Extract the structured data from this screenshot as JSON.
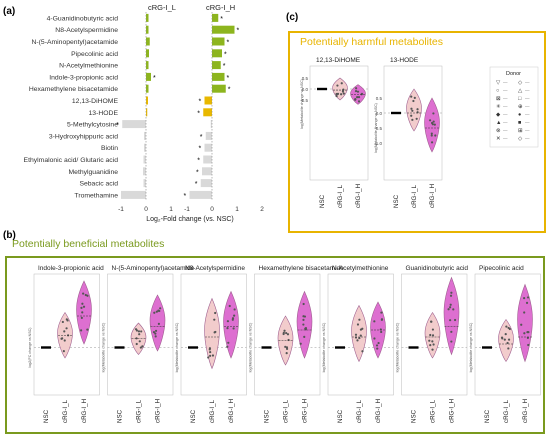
{
  "panels": {
    "a": {
      "label": "(a)"
    },
    "b": {
      "label": "(b)",
      "title": "Potentially beneficial metabolites",
      "frame_color": "#7a9a1e"
    },
    "c": {
      "label": "(c)",
      "title": "Potentially harmful metabolites",
      "frame_color": "#e8b400"
    }
  },
  "chart_data": [
    {
      "panel": "a",
      "type": "bar",
      "xlabel": "Log₂-Fold change (vs. NSC)",
      "column_titles": [
        "cRG-I_L",
        "cRG-I_H"
      ],
      "xticks": [
        -1,
        0,
        1,
        2
      ],
      "xlim": [
        -1.3,
        2.3
      ],
      "categories": [
        "4-Guanidinobutyric acid",
        "N8-Acetylspermidine",
        "N-(5-Aminopentyl)acetamide",
        "Pipecolinic acid",
        "N-Acetylmethionine",
        "Indole-3-propionic acid",
        "Hexamethylene bisacetamide",
        "12,13-DiHOME",
        "13-HODE",
        "5-Methylcytosine",
        "3-Hydroxyhippuric acid",
        "Biotin",
        "Ethylmalonic acid/ Glutaric acid",
        "Methylguanidine",
        "Sebacic acid",
        "Tromethamine"
      ],
      "groups": [
        "beneficial",
        "beneficial",
        "beneficial",
        "beneficial",
        "beneficial",
        "beneficial",
        "beneficial",
        "harmful",
        "harmful",
        "other",
        "other",
        "other",
        "other",
        "other",
        "other",
        "other"
      ],
      "colors": {
        "beneficial": "#8db51e",
        "harmful": "#e8b800",
        "other": "#d9d9d9"
      },
      "series": [
        {
          "name": "cRG-I_L",
          "values": [
            0.1,
            0.1,
            0.15,
            0.12,
            0.1,
            0.2,
            0.1,
            0.08,
            0.05,
            -0.95,
            -0.08,
            -0.08,
            -0.1,
            -0.12,
            -0.1,
            -1.0
          ],
          "significant": [
            false,
            false,
            false,
            false,
            false,
            true,
            false,
            false,
            false,
            true,
            false,
            false,
            false,
            false,
            false,
            false
          ]
        },
        {
          "name": "cRG-I_H",
          "values": [
            0.25,
            0.9,
            0.5,
            0.4,
            0.35,
            0.5,
            0.55,
            -0.3,
            -0.35,
            -0.05,
            -0.25,
            -0.3,
            -0.35,
            -0.4,
            -0.45,
            -0.9
          ],
          "significant": [
            true,
            true,
            true,
            true,
            true,
            true,
            true,
            true,
            true,
            false,
            true,
            true,
            true,
            true,
            true,
            true
          ]
        }
      ],
      "marker": "*"
    },
    {
      "panel": "b",
      "type": "violin",
      "groups": [
        "NSC",
        "cRG-I_L",
        "cRG-I_H"
      ],
      "ylabel": "log(Metabolite change vs NSC)",
      "first_ylabel": "log2(FC change vs NSC)",
      "colors": {
        "NSC": "#000000",
        "cRG-I_L": "#f2cccc",
        "cRG-I_H": "#dd6fd0"
      },
      "plots": [
        {
          "title": "Indole-3-propionic acid",
          "medians": [
            0,
            0.35,
            0.9
          ],
          "ranges": [
            [
              -0.02,
              0.02
            ],
            [
              -0.3,
              1.0
            ],
            [
              0.1,
              1.9
            ]
          ]
        },
        {
          "title": "N-(5-Aminopentyl)acetamide",
          "medians": [
            0,
            0.25,
            0.6
          ],
          "ranges": [
            [
              -0.02,
              0.02
            ],
            [
              -0.2,
              0.7
            ],
            [
              -0.1,
              1.5
            ]
          ]
        },
        {
          "title": "N8-Acetylspermidine",
          "medians": [
            0,
            0.3,
            0.6
          ],
          "ranges": [
            [
              -0.02,
              0.02
            ],
            [
              -0.6,
              1.4
            ],
            [
              -0.3,
              1.6
            ]
          ]
        },
        {
          "title": "Hexamethylene bisacetamide",
          "medians": [
            0,
            0.2,
            0.5
          ],
          "ranges": [
            [
              -0.02,
              0.02
            ],
            [
              -0.5,
              0.9
            ],
            [
              -0.3,
              1.6
            ]
          ]
        },
        {
          "title": "N-Acetylmethionine",
          "medians": [
            0,
            0.3,
            0.5
          ],
          "ranges": [
            [
              -0.02,
              0.02
            ],
            [
              -0.4,
              1.2
            ],
            [
              -0.3,
              1.3
            ]
          ]
        },
        {
          "title": "Guanidinobutyric acid",
          "medians": [
            0,
            0.3,
            0.6
          ],
          "ranges": [
            [
              -0.02,
              0.02
            ],
            [
              -0.3,
              1.0
            ],
            [
              -0.2,
              2.0
            ]
          ]
        },
        {
          "title": "Pipecolinic acid",
          "medians": [
            0,
            0.1,
            0.3
          ],
          "ranges": [
            [
              -0.02,
              0.02
            ],
            [
              -0.4,
              0.8
            ],
            [
              -0.4,
              1.8
            ]
          ]
        }
      ],
      "legend_title": "Donor"
    },
    {
      "panel": "c",
      "type": "violin",
      "groups": [
        "NSC",
        "cRG-I_L",
        "cRG-I_H"
      ],
      "ylabel": "log(Metabolite change vs NSC)",
      "colors": {
        "NSC": "#000000",
        "cRG-I_L": "#f2cccc",
        "cRG-I_H": "#dd6fd0"
      },
      "plots": [
        {
          "title": "12,13-DiHOME",
          "yticks": [
            "0.5",
            "0.0",
            "-0.5"
          ],
          "medians": [
            0,
            -0.05,
            -0.25
          ],
          "ranges": [
            [
              -0.02,
              0.02
            ],
            [
              -0.5,
              0.5
            ],
            [
              -0.7,
              0.2
            ]
          ]
        },
        {
          "title": "13-HODE",
          "yticks": [
            "0.5",
            "0.0",
            "-0.5",
            "-1.0"
          ],
          "medians": [
            0,
            0.0,
            -0.5
          ],
          "ranges": [
            [
              -0.02,
              0.02
            ],
            [
              -0.6,
              0.8
            ],
            [
              -1.3,
              0.5
            ]
          ]
        }
      ]
    }
  ]
}
